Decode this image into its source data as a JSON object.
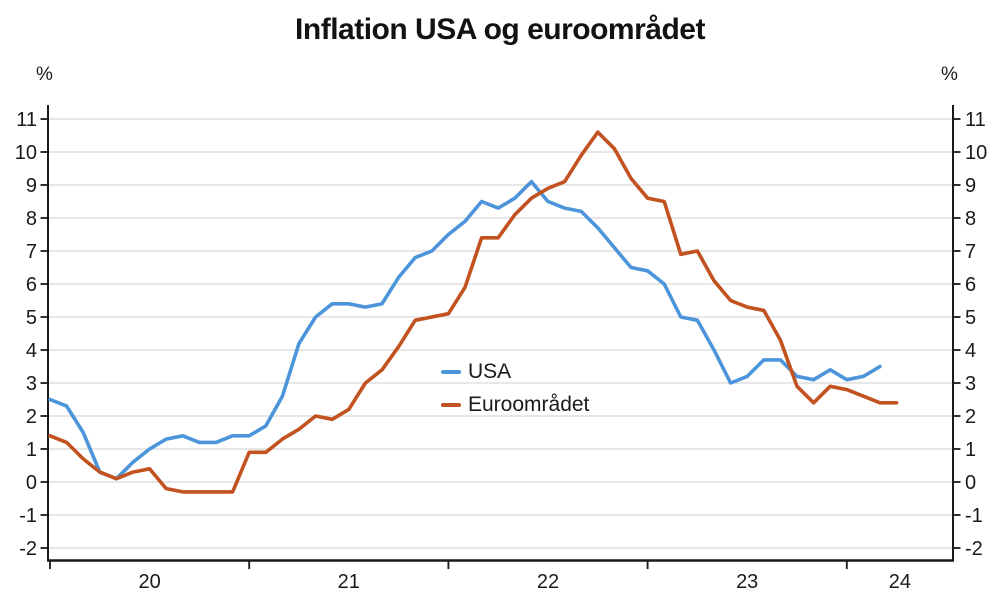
{
  "chart_data": {
    "type": "line",
    "title": "Inflation USA og euroområdet",
    "y_unit_left": "%",
    "y_unit_right": "%",
    "x_start": "2020-01",
    "x_frequency": "monthly",
    "x_tick_labels": [
      "20",
      "21",
      "22",
      "23",
      "24"
    ],
    "y_ticks": [
      11,
      10,
      9,
      8,
      7,
      6,
      5,
      4,
      3,
      2,
      1,
      0,
      -1,
      -2
    ],
    "ylim": [
      -2.4,
      11.45
    ],
    "grid": "horizontal",
    "legend_position": "center",
    "series": [
      {
        "name": "USA",
        "color": "#4C95DB",
        "values": [
          2.5,
          2.3,
          1.5,
          0.3,
          0.1,
          0.6,
          1.0,
          1.3,
          1.4,
          1.2,
          1.2,
          1.4,
          1.4,
          1.7,
          2.6,
          4.2,
          5.0,
          5.4,
          5.4,
          5.3,
          5.4,
          6.2,
          6.8,
          7.0,
          7.5,
          7.9,
          8.5,
          8.3,
          8.6,
          9.1,
          8.5,
          8.3,
          8.2,
          7.7,
          7.1,
          6.5,
          6.4,
          6.0,
          5.0,
          4.9,
          4.0,
          3.0,
          3.2,
          3.7,
          3.7,
          3.2,
          3.1,
          3.4,
          3.1,
          3.2,
          3.5
        ]
      },
      {
        "name": "Euroområdet",
        "color": "#C2521F",
        "values": [
          1.4,
          1.2,
          0.7,
          0.3,
          0.1,
          0.3,
          0.4,
          -0.2,
          -0.3,
          -0.3,
          -0.3,
          -0.3,
          0.9,
          0.9,
          1.3,
          1.6,
          2.0,
          1.9,
          2.2,
          3.0,
          3.4,
          4.1,
          4.9,
          5.0,
          5.1,
          5.9,
          7.4,
          7.4,
          8.1,
          8.6,
          8.9,
          9.1,
          9.9,
          10.6,
          10.1,
          9.2,
          8.6,
          8.5,
          6.9,
          7.0,
          6.1,
          5.5,
          5.3,
          5.2,
          4.3,
          2.9,
          2.4,
          2.9,
          2.8,
          2.6,
          2.4,
          2.4
        ]
      }
    ]
  },
  "legend": [
    {
      "label": "USA"
    },
    {
      "label": "Euroområdet"
    }
  ]
}
